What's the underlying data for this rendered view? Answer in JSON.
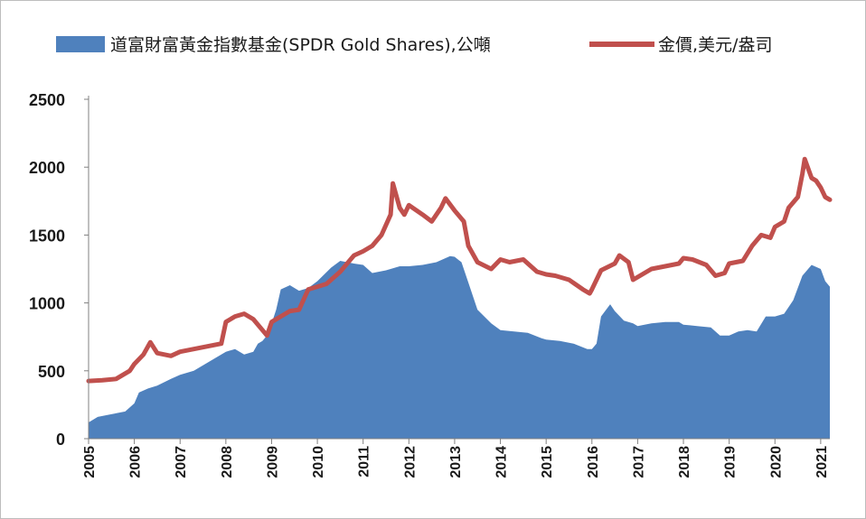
{
  "chart_data": {
    "type": "line",
    "title": "",
    "xlabel": "",
    "ylabel": "",
    "xlim": [
      2005,
      2021.2
    ],
    "ylim": [
      0,
      2500
    ],
    "grid": false,
    "legend_placement": "top",
    "x_tick_labels": [
      "2005",
      "2006",
      "2007",
      "2008",
      "2009",
      "2010",
      "2011",
      "2012",
      "2013",
      "2014",
      "2015",
      "2016",
      "2017",
      "2018",
      "2019",
      "2020",
      "2021"
    ],
    "y_tick_labels": [
      "0",
      "500",
      "1000",
      "1500",
      "2000",
      "2500"
    ],
    "series": [
      {
        "name": "道富財富黃金指數基金(SPDR Gold Shares),公噸",
        "kind": "area",
        "color": "#4F81BD",
        "x": [
          2005.0,
          2005.2,
          2005.5,
          2005.8,
          2006.0,
          2006.1,
          2006.3,
          2006.5,
          2006.8,
          2007.0,
          2007.3,
          2007.6,
          2007.9,
          2008.0,
          2008.2,
          2008.4,
          2008.6,
          2008.7,
          2008.8,
          2008.9,
          2009.0,
          2009.1,
          2009.2,
          2009.4,
          2009.6,
          2009.8,
          2010.0,
          2010.3,
          2010.5,
          2010.8,
          2011.0,
          2011.2,
          2011.5,
          2011.8,
          2012.0,
          2012.3,
          2012.6,
          2012.9,
          2013.0,
          2013.15,
          2013.3,
          2013.5,
          2013.8,
          2014.0,
          2014.3,
          2014.6,
          2014.9,
          2015.0,
          2015.3,
          2015.6,
          2015.9,
          2016.0,
          2016.1,
          2016.2,
          2016.4,
          2016.5,
          2016.7,
          2016.9,
          2017.0,
          2017.3,
          2017.6,
          2017.9,
          2018.0,
          2018.3,
          2018.6,
          2018.8,
          2019.0,
          2019.2,
          2019.4,
          2019.6,
          2019.8,
          2020.0,
          2020.2,
          2020.4,
          2020.6,
          2020.8,
          2021.0,
          2021.1,
          2021.2
        ],
        "values": [
          120,
          160,
          180,
          200,
          260,
          340,
          370,
          390,
          440,
          470,
          500,
          560,
          620,
          640,
          660,
          620,
          640,
          700,
          720,
          760,
          850,
          950,
          1100,
          1130,
          1090,
          1110,
          1160,
          1260,
          1310,
          1290,
          1280,
          1220,
          1240,
          1270,
          1270,
          1280,
          1300,
          1345,
          1340,
          1300,
          1150,
          950,
          850,
          800,
          790,
          780,
          740,
          730,
          720,
          700,
          660,
          660,
          700,
          900,
          990,
          940,
          870,
          850,
          830,
          850,
          860,
          860,
          840,
          830,
          820,
          760,
          760,
          790,
          800,
          790,
          900,
          900,
          920,
          1020,
          1200,
          1280,
          1250,
          1160,
          1120
        ]
      },
      {
        "name": "金價,美元/盎司",
        "kind": "line",
        "color": "#C0504D",
        "x": [
          2005.0,
          2005.3,
          2005.6,
          2005.9,
          2006.0,
          2006.2,
          2006.35,
          2006.5,
          2006.8,
          2007.0,
          2007.3,
          2007.6,
          2007.9,
          2008.0,
          2008.2,
          2008.4,
          2008.6,
          2008.8,
          2008.9,
          2009.0,
          2009.2,
          2009.4,
          2009.6,
          2009.8,
          2010.0,
          2010.2,
          2010.5,
          2010.8,
          2011.0,
          2011.2,
          2011.4,
          2011.6,
          2011.65,
          2011.8,
          2011.9,
          2012.0,
          2012.3,
          2012.5,
          2012.7,
          2012.8,
          2013.0,
          2013.2,
          2013.3,
          2013.5,
          2013.8,
          2014.0,
          2014.2,
          2014.5,
          2014.8,
          2015.0,
          2015.2,
          2015.5,
          2015.8,
          2015.95,
          2016.0,
          2016.2,
          2016.5,
          2016.6,
          2016.8,
          2016.9,
          2017.0,
          2017.3,
          2017.6,
          2017.9,
          2018.0,
          2018.2,
          2018.5,
          2018.7,
          2018.9,
          2019.0,
          2019.3,
          2019.5,
          2019.7,
          2019.9,
          2020.0,
          2020.2,
          2020.3,
          2020.5,
          2020.6,
          2020.65,
          2020.8,
          2020.9,
          2021.0,
          2021.1,
          2021.2
        ],
        "values": [
          425,
          430,
          440,
          500,
          550,
          620,
          710,
          630,
          610,
          640,
          660,
          680,
          700,
          860,
          900,
          920,
          880,
          800,
          760,
          860,
          900,
          940,
          950,
          1100,
          1120,
          1140,
          1230,
          1350,
          1380,
          1420,
          1500,
          1650,
          1880,
          1700,
          1650,
          1720,
          1650,
          1600,
          1700,
          1770,
          1680,
          1600,
          1420,
          1300,
          1250,
          1320,
          1300,
          1320,
          1230,
          1210,
          1200,
          1170,
          1100,
          1070,
          1100,
          1240,
          1290,
          1350,
          1300,
          1170,
          1190,
          1250,
          1270,
          1290,
          1330,
          1320,
          1280,
          1200,
          1220,
          1290,
          1310,
          1420,
          1500,
          1480,
          1560,
          1600,
          1700,
          1780,
          1950,
          2060,
          1920,
          1900,
          1850,
          1780,
          1760
        ]
      }
    ]
  }
}
